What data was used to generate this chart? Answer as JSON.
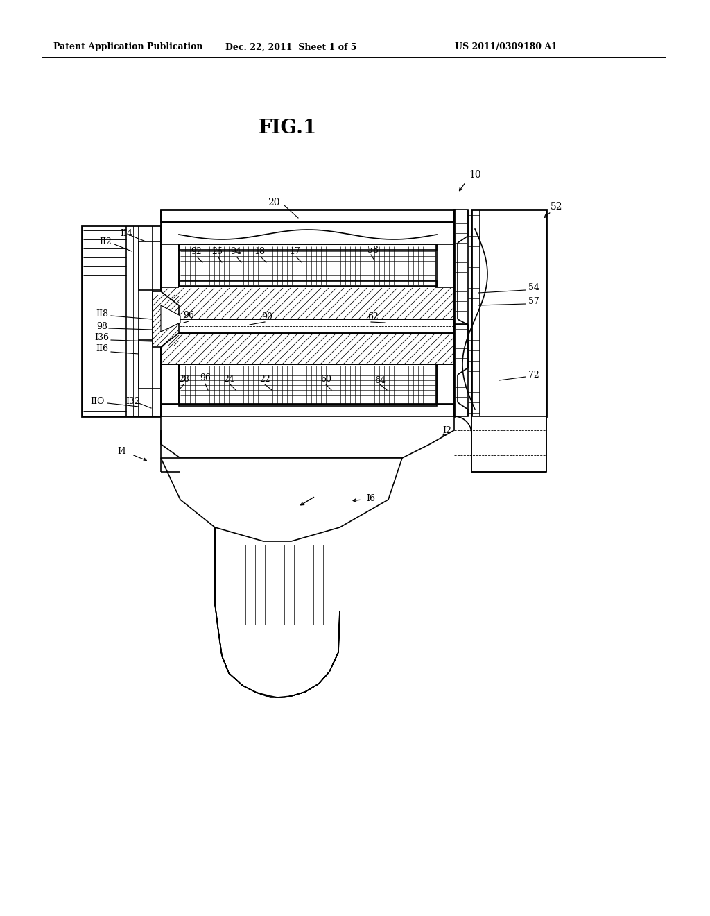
{
  "bg_color": "#ffffff",
  "line_color": "#000000",
  "header_left": "Patent Application Publication",
  "header_mid": "Dec. 22, 2011  Sheet 1 of 5",
  "header_right": "US 2011/0309180 A1",
  "fig_title": "FIG.1",
  "lw": 1.2,
  "lw2": 2.0,
  "lw3": 0.6
}
